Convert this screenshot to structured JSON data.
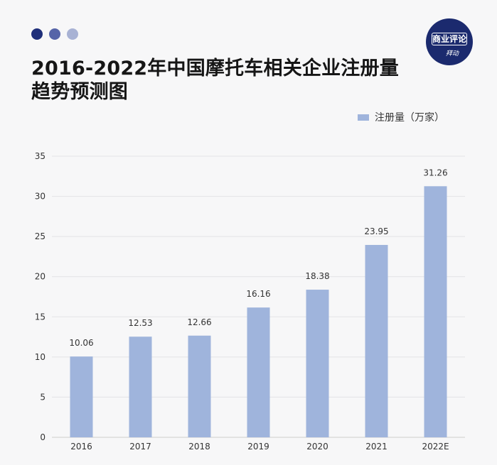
{
  "header": {
    "dot_colors": [
      "#1f2f7a",
      "#5664a8",
      "#a8b2d4"
    ],
    "title_line1": "2016-2022年中国摩托车相关企业注册量",
    "title_line2": "趋势预测图"
  },
  "logo": {
    "main": "商业评论",
    "sub": "拜动"
  },
  "colors": {
    "bar": "#9fb4dc",
    "gridline": "#e3e3e6",
    "axis": "#cccccc"
  },
  "chart_data": {
    "type": "bar",
    "title": "2016-2022年中国摩托车相关企业注册量趋势预测图",
    "categories": [
      "2016",
      "2017",
      "2018",
      "2019",
      "2020",
      "2021",
      "2022E"
    ],
    "series": [
      {
        "name": "注册量（万家）",
        "values": [
          10.06,
          12.53,
          12.66,
          16.16,
          18.38,
          23.95,
          31.26
        ]
      }
    ],
    "data_labels": [
      "10.06",
      "12.53",
      "12.66",
      "16.16",
      "18.38",
      "23.95",
      "31.26"
    ],
    "yticks": [
      "0",
      "5",
      "10",
      "15",
      "20",
      "25",
      "30",
      "35"
    ],
    "ylim": [
      0,
      35
    ],
    "xlabel": "",
    "ylabel": "",
    "legend_position": "top-right",
    "grid": true
  }
}
